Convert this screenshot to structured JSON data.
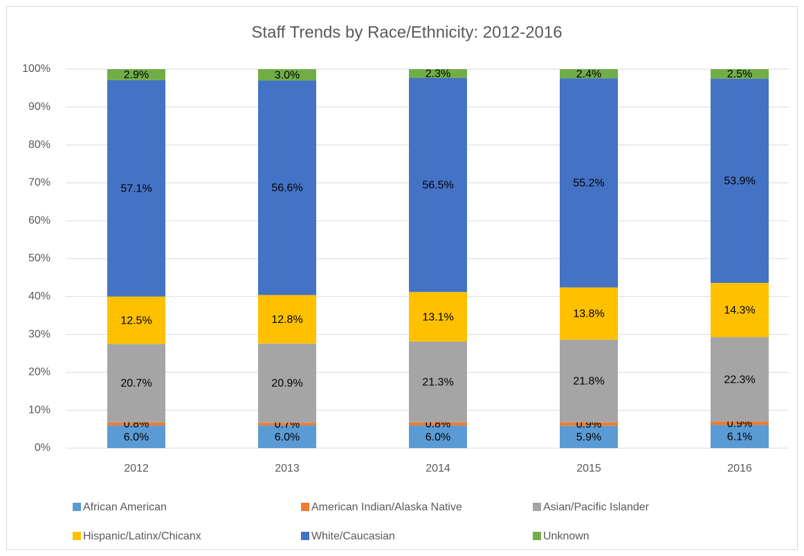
{
  "chart_data": {
    "type": "stacked_bar",
    "title": "Staff Trends by Race/Ethnicity: 2012-2016",
    "categories": [
      "2012",
      "2013",
      "2014",
      "2015",
      "2016"
    ],
    "series": [
      {
        "name": "African American",
        "color": "#5b9bd5",
        "values": [
          6.0,
          6.0,
          6.0,
          5.9,
          6.1
        ],
        "value_labels": [
          "6.0%",
          "6.0%",
          "6.0%",
          "5.9%",
          "6.1%"
        ]
      },
      {
        "name": "American Indian/Alaska Native",
        "color": "#ed7d31",
        "values": [
          0.8,
          0.7,
          0.8,
          0.9,
          0.9
        ],
        "value_labels": [
          "0.8%",
          "0.7%",
          "0.8%",
          "0.9%",
          "0.9%"
        ]
      },
      {
        "name": "Asian/Pacific Islander",
        "color": "#a5a5a5",
        "values": [
          20.7,
          20.9,
          21.3,
          21.8,
          22.3
        ],
        "value_labels": [
          "20.7%",
          "20.9%",
          "21.3%",
          "21.8%",
          "22.3%"
        ]
      },
      {
        "name": "Hispanic/Latinx/Chicanx",
        "color": "#ffc000",
        "values": [
          12.5,
          12.8,
          13.1,
          13.8,
          14.3
        ],
        "value_labels": [
          "12.5%",
          "12.8%",
          "13.1%",
          "13.8%",
          "14.3%"
        ]
      },
      {
        "name": "White/Caucasian",
        "color": "#4472c4",
        "values": [
          57.1,
          56.6,
          56.5,
          55.2,
          53.9
        ],
        "value_labels": [
          "57.1%",
          "56.6%",
          "56.5%",
          "55.2%",
          "53.9%"
        ]
      },
      {
        "name": "Unknown",
        "color": "#70ad47",
        "values": [
          2.9,
          3.0,
          2.3,
          2.4,
          2.5
        ],
        "value_labels": [
          "2.9%",
          "3.0%",
          "2.3%",
          "2.4%",
          "2.5%"
        ]
      }
    ],
    "ylim": [
      0,
      100
    ],
    "yticks": [
      {
        "value": 0,
        "label": "0%"
      },
      {
        "value": 10,
        "label": "10%"
      },
      {
        "value": 20,
        "label": "20%"
      },
      {
        "value": 30,
        "label": "30%"
      },
      {
        "value": 40,
        "label": "40%"
      },
      {
        "value": 50,
        "label": "50%"
      },
      {
        "value": 60,
        "label": "60%"
      },
      {
        "value": 70,
        "label": "70%"
      },
      {
        "value": 80,
        "label": "80%"
      },
      {
        "value": 90,
        "label": "90%"
      },
      {
        "value": 100,
        "label": "100%"
      }
    ],
    "grid": true,
    "legend": "bottom"
  }
}
